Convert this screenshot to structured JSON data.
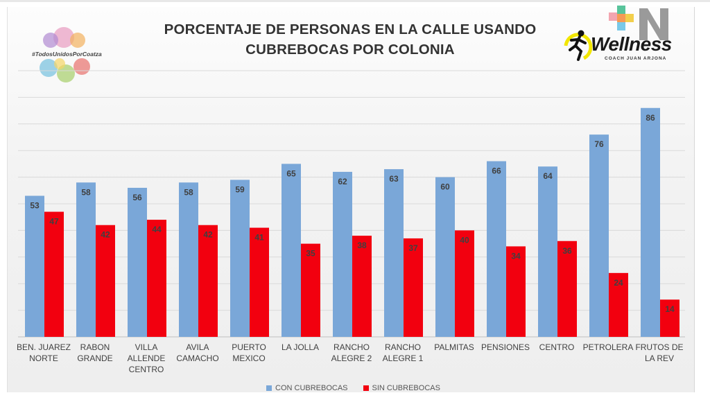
{
  "title_line1": "PORCENTAJE DE PERSONAS EN LA CALLE USANDO",
  "title_line2": "CUBREBOCAS POR COLONIA",
  "logo_left_text": "#TodosUnidosPorCoatza",
  "logo_right": {
    "word": "Wellness",
    "sub": "COACH JUAN ARJONA"
  },
  "colors": {
    "con": "#7aa7d8",
    "sin": "#f2000f",
    "grid": "#d9d9d9",
    "text": "#404040"
  },
  "legend": {
    "con": "CON CUBREBOCAS",
    "sin": "SIN CUBREBOCAS"
  },
  "chart_data": {
    "type": "bar",
    "title": "PORCENTAJE DE PERSONAS EN LA CALLE USANDO CUBREBOCAS POR COLONIA",
    "categories": [
      [
        "BEN. JUAREZ",
        "NORTE"
      ],
      [
        "RABON",
        "GRANDE"
      ],
      [
        "VILLA",
        "ALLENDE",
        "CENTRO"
      ],
      [
        "AVILA",
        "CAMACHO"
      ],
      [
        "PUERTO",
        "MEXICO"
      ],
      [
        "LA JOLLA"
      ],
      [
        "RANCHO",
        "ALEGRE 2"
      ],
      [
        "RANCHO",
        "ALEGRE 1"
      ],
      [
        "PALMITAS"
      ],
      [
        "PENSIONES"
      ],
      [
        "CENTRO"
      ],
      [
        "PETROLERA"
      ],
      [
        "FRUTOS DE",
        "LA REV"
      ]
    ],
    "series": [
      {
        "name": "CON CUBREBOCAS",
        "values": [
          53,
          58,
          56,
          58,
          59,
          65,
          62,
          63,
          60,
          66,
          64,
          76,
          86
        ]
      },
      {
        "name": "SIN CUBREBOCAS",
        "values": [
          47,
          42,
          44,
          42,
          41,
          35,
          38,
          37,
          40,
          34,
          36,
          24,
          14
        ]
      }
    ],
    "ylim": [
      0,
      100
    ],
    "grid": true,
    "legend_position": "bottom"
  }
}
